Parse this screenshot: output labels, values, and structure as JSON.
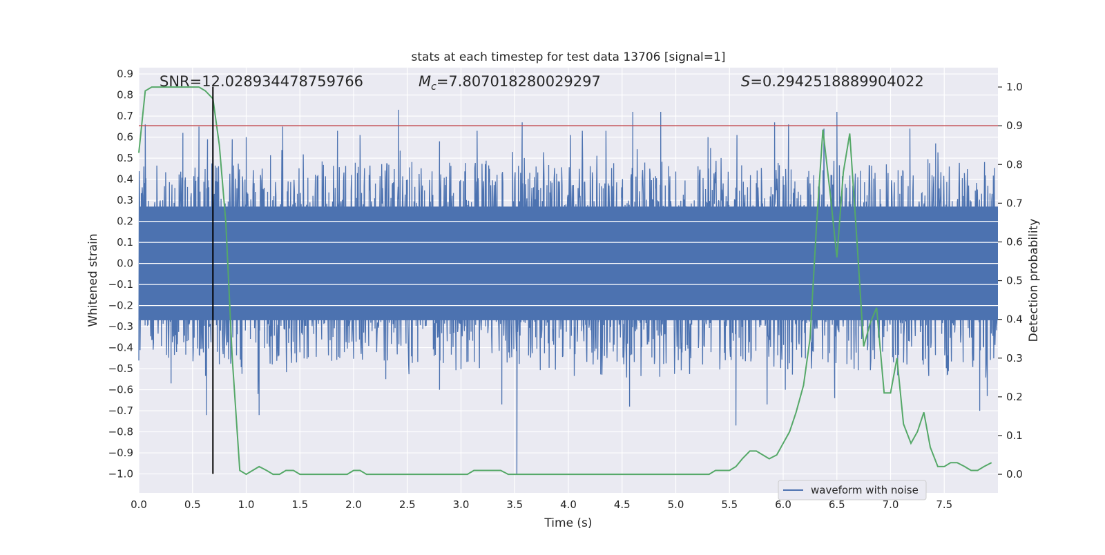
{
  "chart_data": {
    "type": "line",
    "title": "stats at each timestep for test data 13706 [signal=1]",
    "xlabel": "Time (s)",
    "ylabel_left": "Whitened strain",
    "ylabel_right": "Detection probability",
    "xlim": [
      0.0,
      8.0
    ],
    "ylim_left": [
      -1.09,
      0.93
    ],
    "ylim_right": [
      -0.048,
      1.05
    ],
    "xticks": [
      "0.0",
      "0.5",
      "1.0",
      "1.5",
      "2.0",
      "2.5",
      "3.0",
      "3.5",
      "4.0",
      "4.5",
      "5.0",
      "5.5",
      "6.0",
      "6.5",
      "7.0",
      "7.5"
    ],
    "yticks_left": [
      "0.9",
      "0.8",
      "0.7",
      "0.6",
      "0.5",
      "0.4",
      "0.3",
      "0.2",
      "0.1",
      "0.0",
      "-0.1",
      "-0.2",
      "-0.3",
      "-0.4",
      "-0.5",
      "-0.6",
      "-0.7",
      "-0.8",
      "-0.9",
      "-1.0"
    ],
    "yticks_right": [
      "1.0",
      "0.9",
      "0.8",
      "0.7",
      "0.6",
      "0.5",
      "0.4",
      "0.3",
      "0.2",
      "0.1",
      "0.0"
    ],
    "grid": true,
    "legend": {
      "placement": "lower-right",
      "entries": [
        {
          "label": "waveform with noise",
          "color": "#4c72b0"
        }
      ]
    },
    "annotations": {
      "snr": "SNR=12.028934478759766",
      "mc_value": "=7.807018280029297",
      "s_value": "=0.2942518889904022"
    },
    "threshold_line": {
      "axis": "right",
      "y": 0.9,
      "color": "#c44e52"
    },
    "marker_line": {
      "x": 0.69,
      "y_range": [
        -1.0,
        0.84
      ],
      "color": "#000000"
    },
    "series": [
      {
        "name": "waveform with noise",
        "axis": "left",
        "color": "#4c72b0",
        "samples_per_second": 256,
        "envelope_upper": 0.3,
        "envelope_lower": -0.3,
        "spikes": [
          {
            "t": 0.06,
            "y": 0.66
          },
          {
            "t": 0.41,
            "y": 0.62
          },
          {
            "t": 0.56,
            "y": 0.65
          },
          {
            "t": 0.64,
            "y": 0.59
          },
          {
            "t": 0.69,
            "y": 0.84
          },
          {
            "t": 0.87,
            "y": 0.59
          },
          {
            "t": 1.0,
            "y": 0.6
          },
          {
            "t": 1.34,
            "y": 0.65
          },
          {
            "t": 1.85,
            "y": 0.63
          },
          {
            "t": 2.06,
            "y": 0.61
          },
          {
            "t": 2.42,
            "y": 0.73
          },
          {
            "t": 2.8,
            "y": 0.58
          },
          {
            "t": 3.15,
            "y": 0.63
          },
          {
            "t": 3.57,
            "y": 0.67
          },
          {
            "t": 4.02,
            "y": 0.61
          },
          {
            "t": 4.13,
            "y": 0.63
          },
          {
            "t": 4.35,
            "y": 0.63
          },
          {
            "t": 4.6,
            "y": 0.72
          },
          {
            "t": 4.86,
            "y": 0.72
          },
          {
            "t": 5.3,
            "y": 0.6
          },
          {
            "t": 5.57,
            "y": 0.61
          },
          {
            "t": 5.92,
            "y": 0.67
          },
          {
            "t": 6.05,
            "y": 0.66
          },
          {
            "t": 6.38,
            "y": 0.64
          },
          {
            "t": 6.5,
            "y": 0.72
          },
          {
            "t": 7.18,
            "y": 0.64
          },
          {
            "t": 7.42,
            "y": 0.57
          },
          {
            "t": 0.63,
            "y": -0.72
          },
          {
            "t": 1.12,
            "y": -0.72
          },
          {
            "t": 1.11,
            "y": -0.62
          },
          {
            "t": 2.8,
            "y": -0.6
          },
          {
            "t": 3.38,
            "y": -0.67
          },
          {
            "t": 3.52,
            "y": -1.0
          },
          {
            "t": 4.57,
            "y": -0.68
          },
          {
            "t": 5.56,
            "y": -0.77
          },
          {
            "t": 5.85,
            "y": -0.67
          },
          {
            "t": 6.48,
            "y": -0.64
          },
          {
            "t": 6.02,
            "y": -0.6
          },
          {
            "t": 7.83,
            "y": -0.7
          },
          {
            "t": 7.9,
            "y": -0.63
          },
          {
            "t": 0.3,
            "y": -0.57
          },
          {
            "t": 2.3,
            "y": -0.55
          }
        ]
      },
      {
        "name": "detection probability",
        "axis": "right",
        "color": "#55a868",
        "x": [
          0.0,
          0.06,
          0.12,
          0.19,
          0.25,
          0.31,
          0.37,
          0.44,
          0.5,
          0.56,
          0.62,
          0.69,
          0.75,
          0.81,
          0.87,
          0.94,
          1.0,
          1.06,
          1.12,
          1.19,
          1.25,
          1.31,
          1.37,
          1.44,
          1.5,
          1.56,
          1.62,
          1.69,
          1.75,
          1.81,
          1.87,
          1.94,
          2.0,
          2.06,
          2.12,
          2.19,
          2.25,
          2.31,
          2.37,
          2.44,
          2.5,
          2.56,
          2.62,
          2.69,
          2.75,
          2.81,
          2.87,
          2.94,
          3.0,
          3.06,
          3.12,
          3.19,
          3.25,
          3.31,
          3.37,
          3.44,
          3.5,
          3.56,
          3.62,
          3.69,
          3.75,
          3.81,
          3.87,
          3.94,
          4.0,
          4.06,
          4.12,
          4.19,
          4.25,
          4.31,
          4.37,
          4.44,
          4.5,
          4.56,
          4.62,
          4.69,
          4.75,
          4.81,
          4.87,
          4.94,
          5.0,
          5.06,
          5.12,
          5.19,
          5.25,
          5.31,
          5.37,
          5.44,
          5.5,
          5.56,
          5.62,
          5.69,
          5.75,
          5.81,
          5.87,
          5.94,
          6.0,
          6.06,
          6.12,
          6.19,
          6.25,
          6.31,
          6.37,
          6.44,
          6.5,
          6.56,
          6.62,
          6.69,
          6.75,
          6.81,
          6.87,
          6.94,
          7.0,
          7.06,
          7.12,
          7.19,
          7.25,
          7.31,
          7.37,
          7.44,
          7.5,
          7.56,
          7.62,
          7.69,
          7.75,
          7.81,
          7.87,
          7.94
        ],
        "values": [
          0.83,
          0.99,
          1.0,
          1.0,
          1.0,
          1.0,
          1.0,
          1.0,
          1.0,
          1.0,
          0.99,
          0.97,
          0.85,
          0.65,
          0.3,
          0.01,
          0.0,
          0.01,
          0.02,
          0.01,
          0.0,
          0.0,
          0.01,
          0.01,
          0.0,
          0.0,
          0.0,
          0.0,
          0.0,
          0.0,
          0.0,
          0.0,
          0.01,
          0.01,
          0.0,
          0.0,
          0.0,
          0.0,
          0.0,
          0.0,
          0.0,
          0.0,
          0.0,
          0.0,
          0.0,
          0.0,
          0.0,
          0.0,
          0.0,
          0.0,
          0.01,
          0.01,
          0.01,
          0.01,
          0.01,
          0.0,
          0.0,
          0.0,
          0.0,
          0.0,
          0.0,
          0.0,
          0.0,
          0.0,
          0.0,
          0.0,
          0.0,
          0.0,
          0.0,
          0.0,
          0.0,
          0.0,
          0.0,
          0.0,
          0.0,
          0.0,
          0.0,
          0.0,
          0.0,
          0.0,
          0.0,
          0.0,
          0.0,
          0.0,
          0.0,
          0.0,
          0.01,
          0.01,
          0.01,
          0.02,
          0.04,
          0.06,
          0.06,
          0.05,
          0.04,
          0.05,
          0.08,
          0.11,
          0.16,
          0.23,
          0.35,
          0.64,
          0.89,
          0.72,
          0.56,
          0.78,
          0.88,
          0.59,
          0.33,
          0.39,
          0.43,
          0.21,
          0.21,
          0.3,
          0.13,
          0.08,
          0.11,
          0.16,
          0.07,
          0.02,
          0.02,
          0.03,
          0.03,
          0.02,
          0.01,
          0.01,
          0.02,
          0.03
        ]
      }
    ]
  }
}
